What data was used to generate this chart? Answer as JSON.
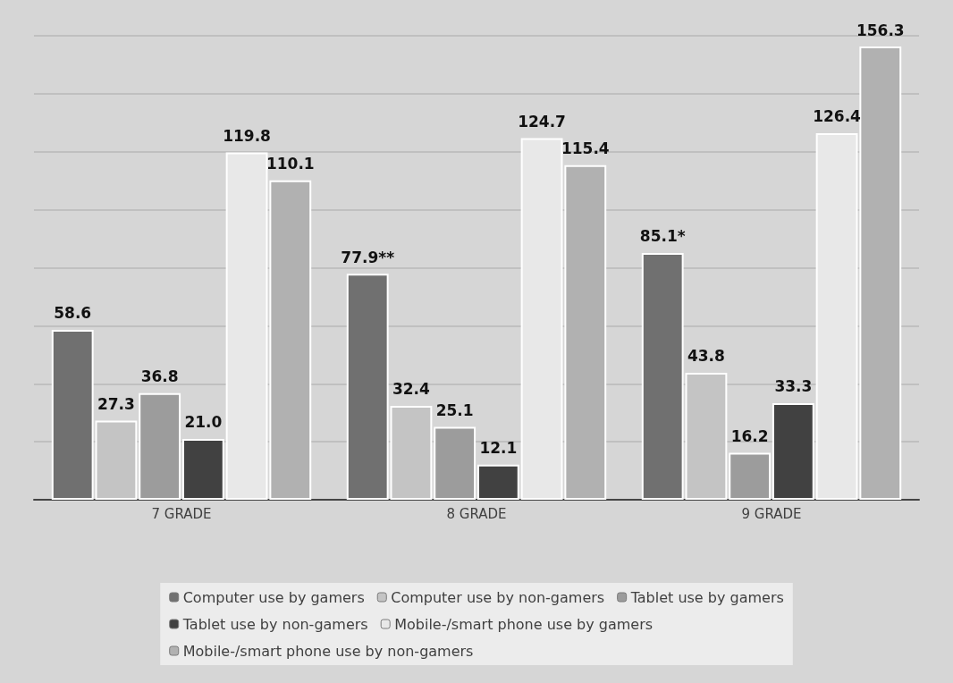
{
  "chart_data": {
    "type": "bar",
    "categories": [
      "7 GRADE",
      "8 GRADE",
      "9 GRADE"
    ],
    "series": [
      {
        "name": "Computer use by gamers",
        "color": "#707070",
        "values": [
          58.6,
          77.9,
          85.1
        ],
        "value_labels": [
          "58.6",
          "77.9**",
          "85.1*"
        ]
      },
      {
        "name": "Computer use by non-gamers",
        "color": "#c4c4c4",
        "values": [
          27.3,
          32.4,
          43.8
        ],
        "value_labels": [
          "27.3",
          "32.4",
          "43.8"
        ]
      },
      {
        "name": "Tablet use by gamers",
        "color": "#9c9c9c",
        "values": [
          36.8,
          25.1,
          16.2
        ],
        "value_labels": [
          "36.8",
          "25.1",
          "16.2"
        ]
      },
      {
        "name": "Tablet use by non-gamers",
        "color": "#414141",
        "values": [
          21.0,
          12.1,
          33.3
        ],
        "value_labels": [
          "21.0",
          "12.1",
          "33.3"
        ]
      },
      {
        "name": "Mobile-/smart phone use by gamers",
        "color": "#e8e8e8",
        "values": [
          119.8,
          124.7,
          126.4
        ],
        "value_labels": [
          "119.8",
          "124.7",
          "126.4"
        ]
      },
      {
        "name": "Mobile-/smart phone use by non-gamers",
        "color": "#b1b1b1",
        "values": [
          110.1,
          115.4,
          156.3
        ],
        "value_labels": [
          "110.1",
          "115.4",
          "156.3"
        ]
      }
    ],
    "grid": "y",
    "legend": "bottom",
    "tick_labels": "x"
  }
}
